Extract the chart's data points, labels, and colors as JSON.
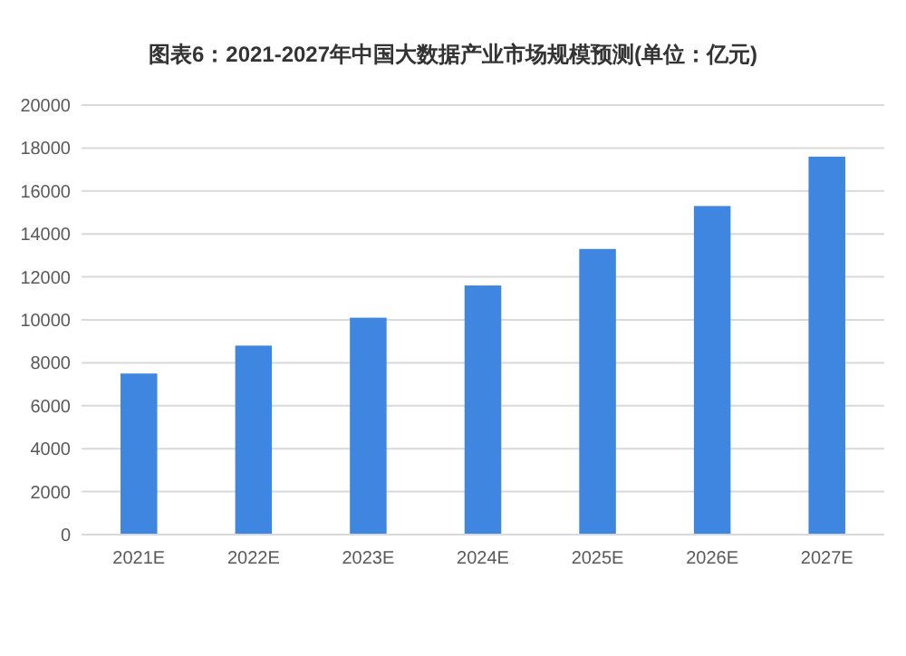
{
  "chart_data": {
    "type": "bar",
    "title": "图表6：2021-2027年中国大数据产业市场规模预测(单位：亿元)",
    "categories": [
      "2021E",
      "2022E",
      "2023E",
      "2024E",
      "2025E",
      "2026E",
      "2027E"
    ],
    "series": [
      {
        "color": "#3f86e0",
        "values": [
          7500,
          8800,
          10100,
          11600,
          13300,
          15300,
          17600
        ]
      }
    ],
    "ylim": [
      0,
      20000
    ],
    "yticks": [
      0,
      2000,
      4000,
      6000,
      8000,
      10000,
      12000,
      14000,
      16000,
      18000,
      20000
    ],
    "grid": "y"
  }
}
